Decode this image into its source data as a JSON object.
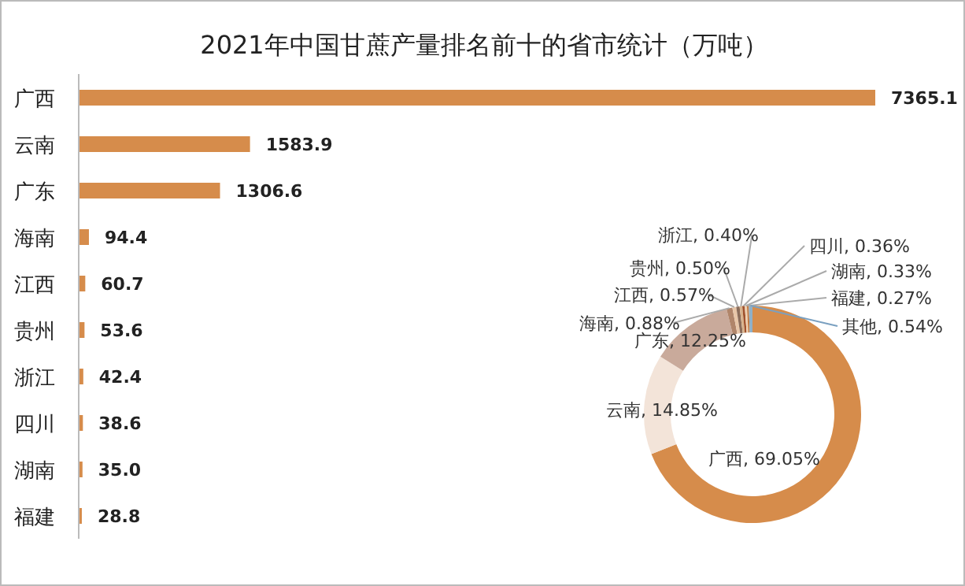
{
  "chart_data": [
    {
      "type": "bar",
      "orientation": "horizontal",
      "title": "2021年中国甘蔗产量排名前十的省市统计（万吨）",
      "categories": [
        "广西",
        "云南",
        "广东",
        "海南",
        "江西",
        "贵州",
        "浙江",
        "四川",
        "湖南",
        "福建"
      ],
      "values": [
        7365.1,
        1583.9,
        1306.6,
        94.4,
        60.7,
        53.6,
        42.4,
        38.6,
        35.0,
        28.8
      ],
      "value_labels": [
        "7365.1",
        "1583.9",
        "1306.6",
        "94.4",
        "60.7",
        "53.6",
        "42.4",
        "38.6",
        "35.0",
        "28.8"
      ],
      "color": "#d68c4b"
    },
    {
      "type": "donut",
      "categories": [
        "广西",
        "云南",
        "广东",
        "海南",
        "江西",
        "贵州",
        "浙江",
        "四川",
        "湖南",
        "福建",
        "其他"
      ],
      "values": [
        69.05,
        14.85,
        12.25,
        0.88,
        0.57,
        0.5,
        0.4,
        0.36,
        0.33,
        0.27,
        0.54
      ],
      "value_labels": [
        "69.05%",
        "14.85%",
        "12.25%",
        "0.88%",
        "0.57%",
        "0.50%",
        "0.40%",
        "0.36%",
        "0.33%",
        "0.27%",
        "0.54%"
      ],
      "colors": [
        "#d68c4b",
        "#f3e4d9",
        "#c9aa9b",
        "#b0856a",
        "#e8c6a8",
        "#8c6d5a",
        "#d9b38c",
        "#a0522d",
        "#f0d0b0",
        "#c07840",
        "#8fb0c8"
      ]
    }
  ]
}
